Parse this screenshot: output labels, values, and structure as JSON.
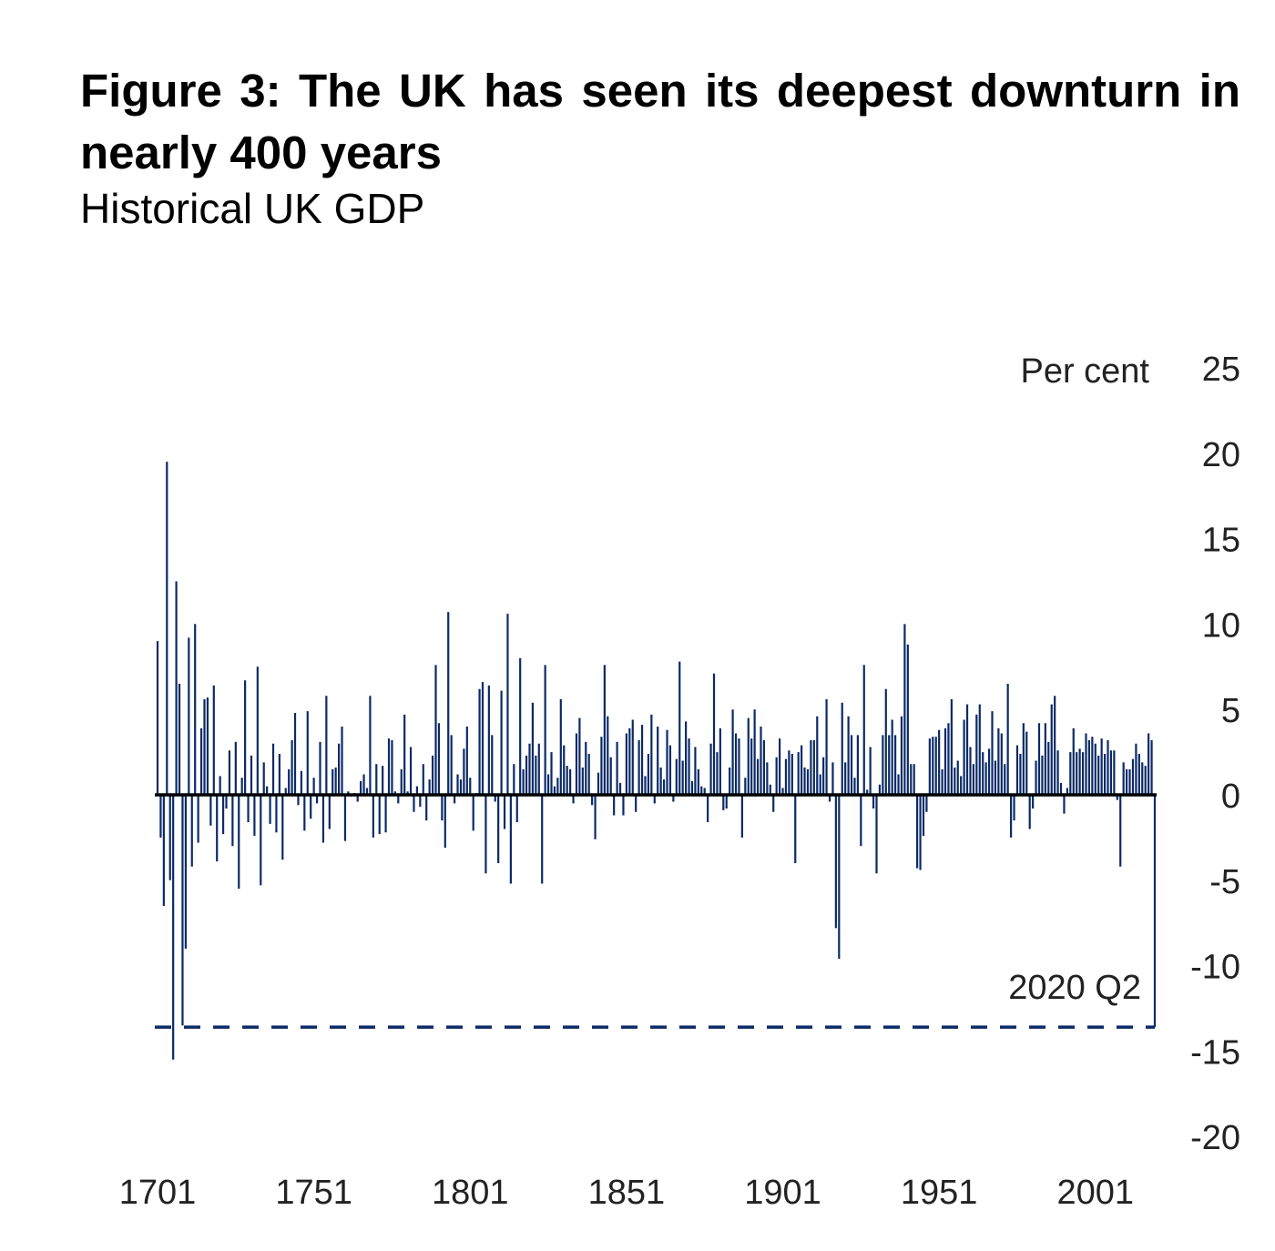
{
  "title": "Figure 3: The UK has seen its deepest downturn in nearly 400 years",
  "subtitle": "Historical UK GDP",
  "chart_data": {
    "type": "bar",
    "title": "Figure 3: The UK has seen its deepest downturn in nearly 400 years",
    "subtitle": "Historical UK GDP",
    "ylabel": "Per cent",
    "xlabel": "",
    "ylim": [
      -20,
      25
    ],
    "xlim": [
      1701,
      2020
    ],
    "x_start": 1701,
    "x_ticks": [
      "1701",
      "1751",
      "1801",
      "1851",
      "1901",
      "1951",
      "2001"
    ],
    "y_ticks": [
      "25",
      "20",
      "15",
      "10",
      "5",
      "0",
      "-5",
      "-10",
      "-15",
      "-20"
    ],
    "bar_color": "#0b2a66",
    "grid": false,
    "annotation": {
      "label": "2020 Q2",
      "value": -13.6,
      "style": "dashed reference line"
    },
    "values": [
      9,
      -2.5,
      -6.5,
      19.5,
      -5,
      -15.5,
      12.5,
      6.5,
      -13.5,
      -9,
      9.2,
      -4.2,
      10,
      -2.8,
      3.9,
      5.6,
      5.7,
      -1.8,
      6.4,
      -3.9,
      1.1,
      -2.3,
      -0.8,
      2.6,
      -3.0,
      3.1,
      -5.5,
      1.0,
      6.7,
      -1.6,
      2.3,
      -2.4,
      7.5,
      -5.3,
      1.9,
      0.5,
      -1.7,
      3.0,
      -2.2,
      2.4,
      -3.8,
      0.4,
      1.5,
      3.2,
      4.8,
      -0.6,
      1.4,
      -2.1,
      4.9,
      -1.4,
      1.0,
      -0.5,
      3.1,
      -2.8,
      5.8,
      -2.0,
      1.5,
      1.6,
      3.0,
      4.0,
      -2.7,
      0.2,
      -0.1,
      0.1,
      -0.4,
      0.8,
      1.2,
      0.4,
      5.8,
      -2.5,
      1.8,
      -2.3,
      1.7,
      -2.2,
      3.3,
      3.2,
      0.2,
      -0.5,
      1.5,
      4.7,
      0.2,
      2.8,
      -1.0,
      0.5,
      -0.7,
      1.8,
      -1.5,
      0.9,
      2.3,
      7.6,
      4.2,
      -1.5,
      -3.1,
      10.7,
      3.5,
      -0.5,
      1.2,
      0.9,
      2.7,
      4.0,
      1.0,
      -2.1,
      0.1,
      6.2,
      6.6,
      -4.6,
      6.4,
      3.5,
      -0.4,
      -4.0,
      6.1,
      -2.0,
      10.6,
      -5.2,
      1.8,
      -1.6,
      8.0,
      1.5,
      2.3,
      3.0,
      5.4,
      2.3,
      3.0,
      -5.2,
      7.6,
      1.2,
      2.5,
      0.5,
      1.0,
      5.6,
      2.9,
      1.7,
      1.5,
      -0.5,
      3.6,
      4.5,
      1.6,
      3.1,
      2.4,
      -0.6,
      -2.6,
      1.3,
      3.4,
      7.6,
      4.6,
      2.2,
      -1.2,
      3.1,
      0.7,
      -1.2,
      3.6,
      3.9,
      4.4,
      -1.0,
      3.2,
      4.1,
      1.1,
      2.4,
      4.7,
      -0.5,
      4.0,
      1.6,
      0.9,
      3.8,
      2.9,
      -0.4,
      2.1,
      7.8,
      2.0,
      4.3,
      3.3,
      0.8,
      2.8,
      1.5,
      0.5,
      0.4,
      -1.6,
      3.0,
      7.1,
      2.5,
      3.9,
      -0.9,
      -0.8,
      1.6,
      5.0,
      3.6,
      3.3,
      -2.5,
      1.0,
      4.5,
      3.3,
      5.0,
      2.1,
      4.0,
      3.2,
      1.9,
      0.6,
      -1.0,
      2.2,
      3.3,
      0.4,
      2.1,
      2.6,
      2.4,
      -4.0,
      2.5,
      2.9,
      1.6,
      1.5,
      3.2,
      3.2,
      4.6,
      1.2,
      2.2,
      5.6,
      -0.4,
      1.9,
      -7.8,
      -9.6,
      5.4,
      1.9,
      4.6,
      3.5,
      1.0,
      3.5,
      -3.0,
      7.6,
      0.3,
      2.8,
      -0.8,
      -4.6,
      0.6,
      3.5,
      6.2,
      3.5,
      4.4,
      3.5,
      1.2,
      4.6,
      10.0,
      8.8,
      1.8,
      1.8,
      -4.3,
      -4.4,
      -2.4,
      -1.0,
      3.3,
      3.4,
      3.4,
      3.8,
      1.5,
      3.9,
      4.2,
      5.6,
      1.6,
      2.0,
      1.1,
      4.4,
      5.3,
      2.8,
      1.8,
      4.7,
      5.3,
      2.5,
      1.9,
      2.7,
      4.9,
      2.0,
      3.9,
      3.6,
      1.8,
      6.5,
      -2.5,
      -1.5,
      2.9,
      2.4,
      4.2,
      3.7,
      -2.0,
      -0.8,
      2.0,
      4.2,
      2.3,
      4.2,
      3.1,
      5.3,
      5.8,
      2.6,
      0.7,
      -1.1,
      0.4,
      2.5,
      3.9,
      2.5,
      2.7,
      2.5,
      3.6,
      3.2,
      3.4,
      3.0,
      2.3,
      3.3,
      2.4,
      3.2,
      2.6,
      2.6,
      -0.3,
      -4.2,
      1.9,
      1.5,
      1.5,
      2.1,
      3.0,
      2.4,
      1.9,
      1.7,
      3.6,
      3.2,
      -13.6
    ]
  }
}
